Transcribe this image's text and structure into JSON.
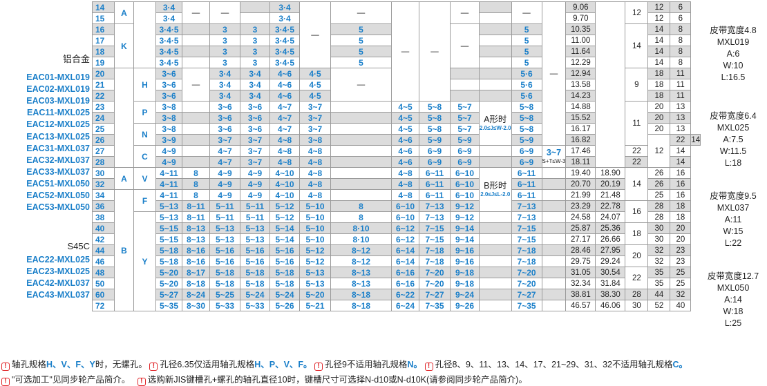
{
  "left_column": {
    "material1": "铝合金",
    "codes1": [
      "EAC01-MXL019",
      "EAC02-MXL019",
      "EAC03-MXL019",
      "EAC11-MXL025",
      "EAC12-MXL025",
      "EAC13-MXL025",
      "EAC31-MXL037",
      "EAC32-MXL037",
      "EAC33-MXL037",
      "EAC51-MXL050",
      "EAC52-MXL050",
      "EAC53-MXL050"
    ],
    "material2": "S45C",
    "codes2": [
      "EAC22-MXL025",
      "EAC23-MXL025",
      "EAC42-MXL037",
      "EAC43-MXL037"
    ]
  },
  "spans": {
    "A1": "A",
    "K": "K",
    "H": "H",
    "P": "P",
    "N": "N",
    "C": "C",
    "V": "V",
    "F": "F",
    "Y": "Y",
    "A2": "A",
    "B": "B",
    "dash_a": "—",
    "dash_b": "—",
    "dash_c": "—",
    "dash_d": "—",
    "dash_e": "—",
    "dash_f": "—",
    "dash_g": "—",
    "dash_h": "—",
    "dash_i": "—",
    "dash_j": "—",
    "dash_k": "—",
    "a_form": "A形时",
    "a_form_sub": "2.0≤J≤W-2.0",
    "b_form": "B形时",
    "b_form_sub": "2.0≤J≤L-2.0",
    "extra": "3~7",
    "extra_sub": "S+T≤W-3",
    "e12": "12",
    "e14": "14",
    "e9": "9",
    "e11": "11",
    "e12b": "12",
    "e14b": "14",
    "e16": "16",
    "e18": "18",
    "e20": "20",
    "e22": "22"
  },
  "rows": [
    {
      "t": "14",
      "c1": "3·4",
      "c4": "3·4",
      "c5": "3·4",
      "d1": "9.06",
      "d2": "8.55",
      "f": "12",
      "g": "6"
    },
    {
      "t": "15",
      "c1": "3·4",
      "c4": "3·4",
      "c5": "3·4",
      "d1": "9.70",
      "d2": "9.19",
      "f": "12",
      "g": "6"
    },
    {
      "t": "16",
      "c1": "3·4·5",
      "c2": "3",
      "c3": "3",
      "c4": "3·4·5",
      "c5": "3·4·5",
      "c6": "5",
      "c10": "5",
      "d1": "10.35",
      "d2": "9.84",
      "f": "14",
      "g": "8"
    },
    {
      "t": "17",
      "c1": "3·4·5",
      "c2": "3",
      "c3": "3",
      "c4": "3·4·5",
      "c5": "3·4·5",
      "c6": "5",
      "c10": "5",
      "d1": "11.00",
      "d2": "10.49",
      "f": "14",
      "g": "8"
    },
    {
      "t": "18",
      "c1": "3·4·5",
      "c2": "3",
      "c3": "3",
      "c4": "3·4·5",
      "c5": "3·4·5",
      "c6": "5",
      "c10": "5",
      "d1": "11.64",
      "d2": "11.14",
      "f": "14",
      "g": "8"
    },
    {
      "t": "19",
      "c1": "3·4·5",
      "c2": "3",
      "c3": "3",
      "c4": "3·4·5",
      "c5": "3·4·5",
      "c6": "5",
      "c10": "5",
      "d1": "12.29",
      "d2": "11.78",
      "f": "14",
      "g": "8"
    },
    {
      "t": "20",
      "c1": "3~6",
      "c2": "3·4",
      "c3": "3·4",
      "c4": "4~6",
      "c5": "4·5",
      "c10": "5·6",
      "d1": "12.94",
      "d2": "12.43",
      "f": "18",
      "g": "11"
    },
    {
      "t": "21",
      "c1": "3~6",
      "c2": "3·4",
      "c3": "3·4",
      "c4": "4~6",
      "c5": "4·5",
      "c10": "5·6",
      "d1": "13.58",
      "d2": "13.07",
      "f": "18",
      "g": "11"
    },
    {
      "t": "22",
      "c1": "3~6",
      "c2": "3·4",
      "c3": "3·4",
      "c4": "4~6",
      "c5": "4·5",
      "c10": "5·6",
      "d1": "14.23",
      "d2": "13.72",
      "f": "18",
      "g": "11"
    },
    {
      "t": "23",
      "c1": "3~8",
      "c2": "3~6",
      "c3": "3~6",
      "c4": "4~7",
      "c5": "3~7",
      "c7": "4~5",
      "c8": "5~8",
      "c9": "5~7",
      "c10": "5~8",
      "d1": "14.88",
      "d2": "14.37",
      "f": "20",
      "g": "13"
    },
    {
      "t": "24",
      "c1": "3~8",
      "c2": "3~6",
      "c3": "3~6",
      "c4": "4~7",
      "c5": "3~7",
      "c7": "4~5",
      "c8": "5~8",
      "c9": "5~7",
      "c10": "5~8",
      "d1": "15.52",
      "d2": "15.02",
      "f": "20",
      "g": "13"
    },
    {
      "t": "25",
      "c1": "3~8",
      "c2": "3~6",
      "c3": "3~6",
      "c4": "4~7",
      "c5": "3~7",
      "c7": "4~5",
      "c8": "5~8",
      "c9": "5~7",
      "c10": "5~8",
      "d1": "16.17",
      "d2": "15.66",
      "f": "20",
      "g": "13"
    },
    {
      "t": "26",
      "c1": "3~9",
      "c2": "3~7",
      "c3": "3~7",
      "c4": "4~8",
      "c5": "3~8",
      "c7": "4~6",
      "c8": "5~9",
      "c9": "5~9",
      "c10": "5~9",
      "d1": "16.82",
      "d2": "16.31",
      "f": "22",
      "g": "14"
    },
    {
      "t": "27",
      "c1": "4~9",
      "c2": "4~7",
      "c3": "3~7",
      "c4": "4~8",
      "c5": "4~8",
      "c7": "4~6",
      "c8": "6~9",
      "c9": "6~9",
      "c10": "6~9",
      "d1": "17.46",
      "d2": "16.96",
      "f": "22",
      "g": "14"
    },
    {
      "t": "28",
      "c1": "4~9",
      "c2": "4~7",
      "c3": "3~7",
      "c4": "4~8",
      "c5": "4~8",
      "c7": "4~6",
      "c8": "6~9",
      "c9": "6~9",
      "c10": "6~9",
      "d1": "18.11",
      "d2": "17.60",
      "f": "22",
      "g": "14"
    },
    {
      "t": "30",
      "c1": "4~11",
      "c1b": "8",
      "c2": "4~9",
      "c3": "4~9",
      "c4": "4~10",
      "c5": "4~8",
      "c7": "4~8",
      "c8": "6~11",
      "c9": "6~10",
      "c10": "6~11",
      "d1": "19.40",
      "d2": "18.90",
      "f": "26",
      "g": "16"
    },
    {
      "t": "32",
      "c1": "4~11",
      "c1b": "8",
      "c2": "4~9",
      "c3": "4~9",
      "c4": "4~10",
      "c5": "4~8",
      "c7": "4~8",
      "c8": "6~11",
      "c9": "6~10",
      "c10": "6~11",
      "d1": "20.70",
      "d2": "20.19",
      "f": "26",
      "g": "16"
    },
    {
      "t": "34",
      "c1": "4~11",
      "c1b": "8",
      "c2": "4~9",
      "c3": "4~9",
      "c4": "4~10",
      "c5": "4~8",
      "c7": "4~8",
      "c8": "6~11",
      "c9": "6~10",
      "c10": "6~11",
      "d1": "21.99",
      "d2": "21.48",
      "f": "25",
      "g": "16"
    },
    {
      "t": "36",
      "c1": "5~13",
      "c1b": "8~11",
      "c2": "5~11",
      "c3": "5~11",
      "c4": "5~12",
      "c5": "5~10",
      "c6": "8",
      "c7": "6~10",
      "c8": "7~13",
      "c9": "9~12",
      "c10": "7~13",
      "d1": "23.29",
      "d2": "22.78",
      "f": "28",
      "g": "18"
    },
    {
      "t": "38",
      "c1": "5~13",
      "c1b": "8~11",
      "c2": "5~11",
      "c3": "5~11",
      "c4": "5~12",
      "c5": "5~10",
      "c6": "8",
      "c7": "6~10",
      "c8": "7~13",
      "c9": "9~12",
      "c10": "7~13",
      "d1": "24.58",
      "d2": "24.07",
      "f": "28",
      "g": "18"
    },
    {
      "t": "40",
      "c1": "5~15",
      "c1b": "8~13",
      "c2": "5~13",
      "c3": "5~13",
      "c4": "5~14",
      "c5": "5~10",
      "c6": "8·10",
      "c7": "6~12",
      "c8": "7~15",
      "c9": "9~14",
      "c10": "7~15",
      "d1": "25.87",
      "d2": "25.36",
      "f": "30",
      "g": "20"
    },
    {
      "t": "42",
      "c1": "5~15",
      "c1b": "8~13",
      "c2": "5~13",
      "c3": "5~13",
      "c4": "5~14",
      "c5": "5~10",
      "c6": "8·10",
      "c7": "6~12",
      "c8": "7~15",
      "c9": "9~14",
      "c10": "7~15",
      "d1": "27.17",
      "d2": "26.66",
      "f": "30",
      "g": "20"
    },
    {
      "t": "44",
      "c1": "5~18",
      "c1b": "8~16",
      "c2": "5~16",
      "c3": "5~16",
      "c4": "5~16",
      "c5": "5~12",
      "c6": "8~12",
      "c7": "6~14",
      "c8": "7~18",
      "c9": "9~16",
      "c10": "7~18",
      "d1": "28.46",
      "d2": "27.95",
      "f": "32",
      "g": "23"
    },
    {
      "t": "46",
      "c1": "5~18",
      "c1b": "8~16",
      "c2": "5~16",
      "c3": "5~16",
      "c4": "5~16",
      "c5": "5~12",
      "c6": "8~12",
      "c7": "6~14",
      "c8": "7~18",
      "c9": "9~16",
      "c10": "7~18",
      "d1": "29.75",
      "d2": "29.24",
      "f": "32",
      "g": "23"
    },
    {
      "t": "48",
      "c1": "5~20",
      "c1b": "8~17",
      "c2": "5~18",
      "c3": "5~18",
      "c4": "5~18",
      "c5": "5~13",
      "c6": "8~13",
      "c7": "6~16",
      "c8": "7~20",
      "c9": "9~18",
      "c10": "7~20",
      "d1": "31.05",
      "d2": "30.54",
      "f": "35",
      "g": "25"
    },
    {
      "t": "50",
      "c1": "5~20",
      "c1b": "8~18",
      "c2": "5~18",
      "c3": "5~18",
      "c4": "5~18",
      "c5": "5~13",
      "c6": "8~13",
      "c7": "6~16",
      "c8": "7~20",
      "c9": "9~18",
      "c10": "7~20",
      "d1": "32.34",
      "d2": "31.84",
      "f": "35",
      "g": "25"
    },
    {
      "t": "60",
      "c1": "5~27",
      "c1b": "8~24",
      "c2": "5~25",
      "c3": "5~24",
      "c4": "5~24",
      "c5": "5~20",
      "c6": "8~18",
      "c7": "6~22",
      "c8": "7~27",
      "c9": "9~24",
      "c10": "7~27",
      "d1": "38.81",
      "d2": "38.30",
      "e": "28",
      "f": "44",
      "g": "32"
    },
    {
      "t": "72",
      "c1": "5~35",
      "c1b": "8~30",
      "c2": "5~33",
      "c3": "5~33",
      "c4": "5~26",
      "c5": "5~21",
      "c6": "8~18",
      "c7": "6~24",
      "c8": "7~35",
      "c9": "9~26",
      "c10": "7~35",
      "d1": "46.57",
      "d2": "46.06",
      "e": "30",
      "f": "52",
      "g": "40"
    }
  ],
  "right_column": [
    {
      "w": "皮带宽度4.8",
      "m": "MXL019",
      "a": "A:6",
      "ww": "W:10",
      "l": "L:16.5"
    },
    {
      "w": "皮带宽度6.4",
      "m": "MXL025",
      "a": "A:7.5",
      "ww": "W:11.5",
      "l": "L:18"
    },
    {
      "w": "皮带宽度9.5",
      "m": "MXL037",
      "a": "A:11",
      "ww": "W:15",
      "l": "L:22"
    },
    {
      "w": "皮带宽度12.7",
      "m": "MXL050",
      "a": "A:14",
      "ww": "W:18",
      "l": "L:25"
    }
  ],
  "notes": {
    "n1a": "轴孔规格",
    "n1b": "H、V、F、Y",
    "n1c": "时，无螺孔。",
    "n2a": "孔径6.35仅适用轴孔规格",
    "n2b": "H、P、V、F。",
    "n3a": "孔径9不适用轴孔规格",
    "n3b": "N。",
    "n4a": "孔径8、9、11、13、14、17、21~29、31、32不适用轴孔规格",
    "n4b": "C。",
    "n5": "\"可选加工\"见同步轮产品简介。",
    "n6": "选购新JIS键槽孔+螺孔的轴孔直径10时，键槽尺寸可选择N-d10或N-d10K(请参阅同步轮产品简介)。",
    "icon": "!"
  }
}
